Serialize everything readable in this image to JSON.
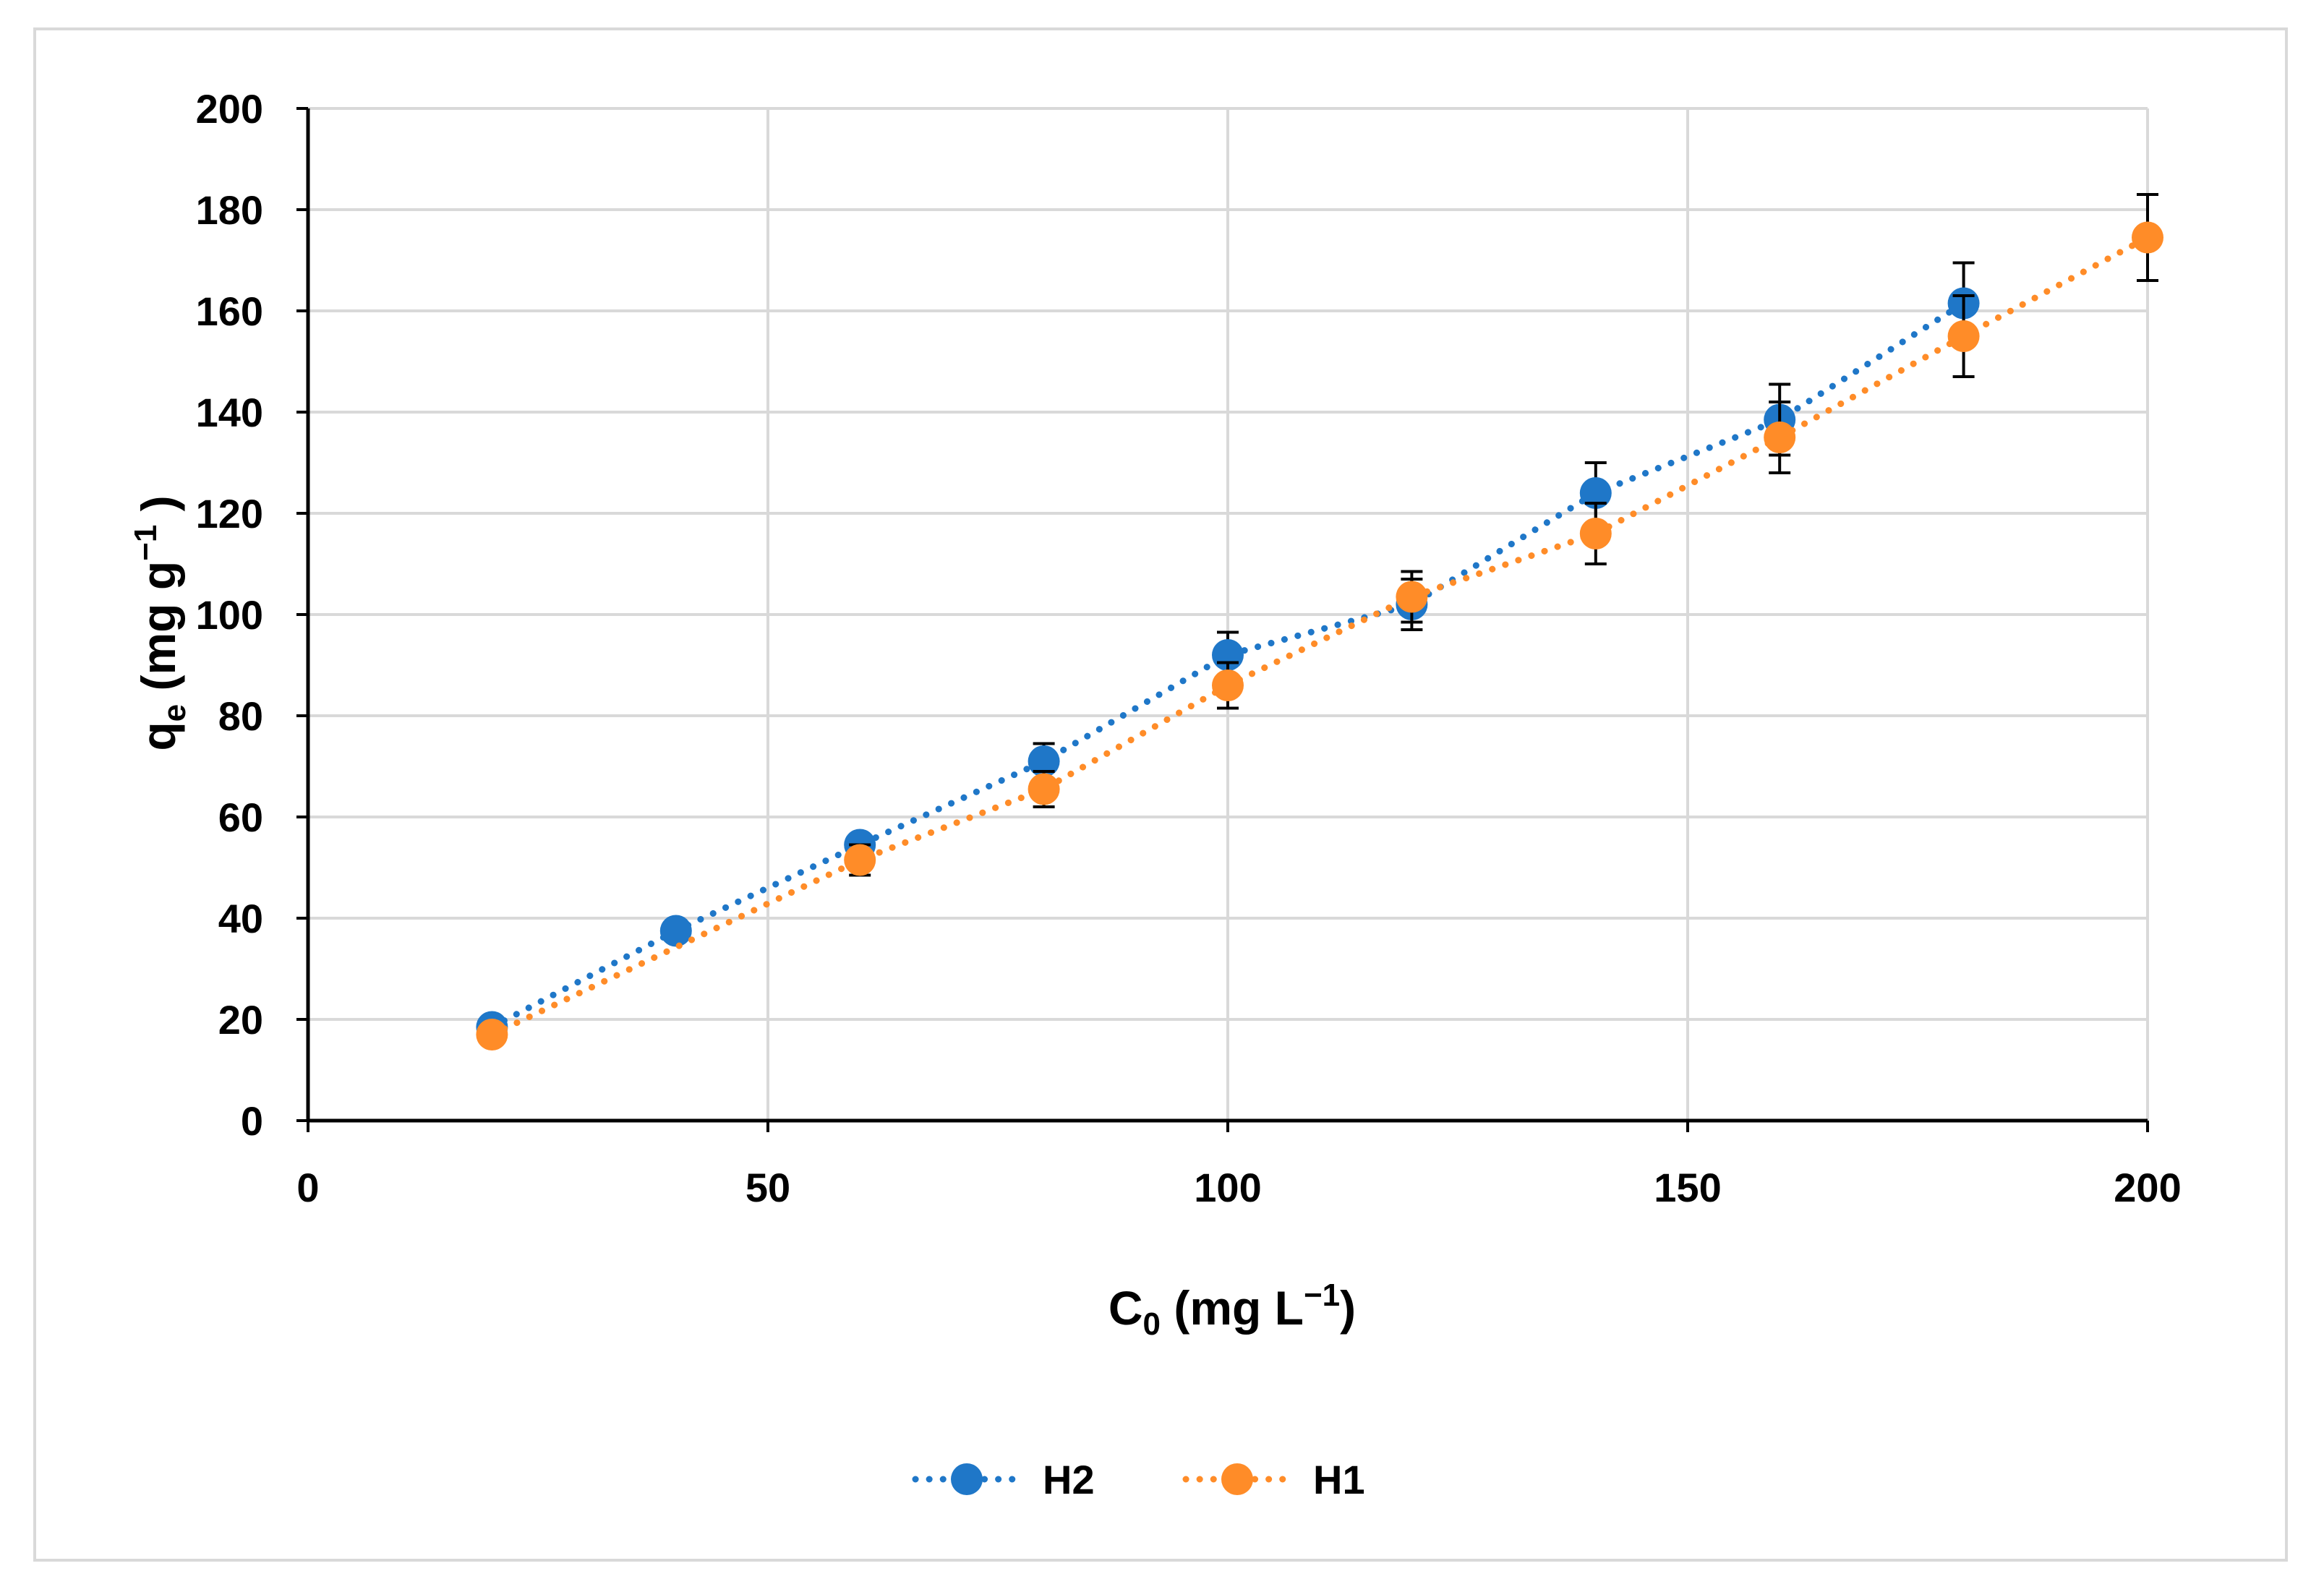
{
  "chart_data": {
    "type": "scatter",
    "title": "",
    "xlabel": {
      "base": "C",
      "sub": "0",
      "rest": " (mg L",
      "sup": "−1",
      "close": ")"
    },
    "ylabel": {
      "base": "q",
      "sub": "e",
      "rest": " (mg g",
      "sup": "−1",
      "close": " )"
    },
    "xlim": [
      0,
      200
    ],
    "ylim": [
      0,
      200
    ],
    "xticks": [
      0,
      50,
      100,
      150,
      200
    ],
    "yticks": [
      0,
      20,
      40,
      60,
      80,
      100,
      120,
      140,
      160,
      180,
      200
    ],
    "grid": true,
    "legend_position": "bottom",
    "line_style": "dotted",
    "series": [
      {
        "name": "H2",
        "color": "#1f77c8",
        "x": [
          20,
          40,
          60,
          80,
          100,
          120,
          140,
          160,
          180
        ],
        "y": [
          18.5,
          37.5,
          54.5,
          71,
          92,
          102,
          124,
          138.5,
          161.5
        ],
        "err": [
          0,
          0,
          0,
          3.5,
          4.5,
          5,
          6,
          7,
          8
        ]
      },
      {
        "name": "H1",
        "color": "#ff8c28",
        "x": [
          20,
          60,
          80,
          100,
          120,
          140,
          160,
          180,
          200
        ],
        "y": [
          17,
          51.5,
          65.5,
          86,
          103.5,
          116,
          135,
          155,
          174.5
        ],
        "err": [
          0,
          3,
          3.5,
          4.5,
          5,
          6,
          7,
          8,
          8.5
        ]
      }
    ]
  }
}
